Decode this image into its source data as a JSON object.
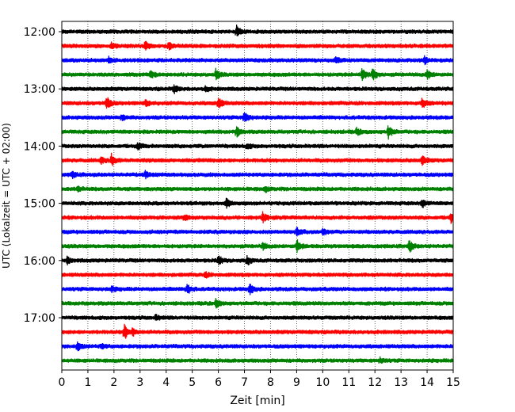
{
  "chart_data": {
    "type": "line",
    "xlabel": "Zeit  [min]",
    "ylabel": "UTC (Lokalzeit = UTC + 02:00)",
    "xlim": [
      0,
      15
    ],
    "x_ticks": [
      "0",
      "1",
      "2",
      "3",
      "4",
      "5",
      "6",
      "7",
      "8",
      "9",
      "10",
      "11",
      "12",
      "13",
      "14",
      "15"
    ],
    "y_ticks": [
      "12:00",
      "13:00",
      "14:00",
      "15:00",
      "16:00",
      "17:00"
    ],
    "grid": "vertical-dotted",
    "colors": [
      "#000000",
      "#ff0000",
      "#0000ff",
      "#008000"
    ],
    "traces": [
      {
        "start": "12:00",
        "color": "#000000",
        "events": [
          [
            6.7,
            7
          ]
        ]
      },
      {
        "start": "12:15",
        "color": "#ff0000",
        "events": [
          [
            3.2,
            5
          ],
          [
            4.1,
            4
          ],
          [
            1.9,
            3
          ]
        ]
      },
      {
        "start": "12:30",
        "color": "#0000ff",
        "events": [
          [
            1.8,
            4
          ],
          [
            10.5,
            3
          ],
          [
            13.9,
            4
          ]
        ]
      },
      {
        "start": "12:45",
        "color": "#008000",
        "events": [
          [
            5.9,
            6
          ],
          [
            11.5,
            9
          ],
          [
            11.9,
            8
          ],
          [
            14.0,
            6
          ],
          [
            3.4,
            4
          ]
        ]
      },
      {
        "start": "13:00",
        "color": "#000000",
        "events": [
          [
            4.3,
            5
          ],
          [
            5.5,
            3
          ]
        ]
      },
      {
        "start": "13:15",
        "color": "#ff0000",
        "events": [
          [
            1.7,
            9
          ],
          [
            6.0,
            7
          ],
          [
            3.2,
            4
          ],
          [
            13.8,
            7
          ]
        ]
      },
      {
        "start": "13:30",
        "color": "#0000ff",
        "events": [
          [
            7.0,
            7
          ],
          [
            2.3,
            3
          ]
        ]
      },
      {
        "start": "13:45",
        "color": "#008000",
        "events": [
          [
            6.7,
            6
          ],
          [
            12.5,
            9
          ],
          [
            11.3,
            4
          ]
        ]
      },
      {
        "start": "14:00",
        "color": "#000000",
        "events": [
          [
            2.9,
            4
          ],
          [
            7.1,
            3
          ]
        ]
      },
      {
        "start": "14:15",
        "color": "#ff0000",
        "events": [
          [
            1.9,
            7
          ],
          [
            1.5,
            4
          ],
          [
            13.8,
            6
          ]
        ]
      },
      {
        "start": "14:30",
        "color": "#0000ff",
        "events": [
          [
            0.4,
            4
          ],
          [
            3.2,
            4
          ]
        ]
      },
      {
        "start": "14:45",
        "color": "#008000",
        "events": [
          [
            0.6,
            3
          ],
          [
            7.8,
            3
          ]
        ]
      },
      {
        "start": "15:00",
        "color": "#000000",
        "events": [
          [
            6.3,
            6
          ],
          [
            13.8,
            5
          ]
        ]
      },
      {
        "start": "15:15",
        "color": "#ff0000",
        "events": [
          [
            7.7,
            6
          ],
          [
            14.9,
            6
          ],
          [
            4.7,
            3
          ]
        ]
      },
      {
        "start": "15:30",
        "color": "#0000ff",
        "events": [
          [
            9.0,
            6
          ],
          [
            10.0,
            4
          ]
        ]
      },
      {
        "start": "15:45",
        "color": "#008000",
        "events": [
          [
            9.0,
            8
          ],
          [
            13.3,
            8
          ],
          [
            7.7,
            4
          ]
        ]
      },
      {
        "start": "16:00",
        "color": "#000000",
        "events": [
          [
            6.0,
            6
          ],
          [
            7.1,
            5
          ],
          [
            0.2,
            4
          ]
        ]
      },
      {
        "start": "16:15",
        "color": "#ff0000",
        "events": [
          [
            5.5,
            3
          ]
        ]
      },
      {
        "start": "16:30",
        "color": "#0000ff",
        "events": [
          [
            4.8,
            6
          ],
          [
            7.2,
            7
          ],
          [
            1.9,
            3
          ]
        ]
      },
      {
        "start": "16:45",
        "color": "#008000",
        "events": [
          [
            5.9,
            5
          ]
        ]
      },
      {
        "start": "17:00",
        "color": "#000000",
        "events": [
          [
            3.6,
            3
          ]
        ]
      },
      {
        "start": "17:15",
        "color": "#ff0000",
        "events": [
          [
            2.4,
            9
          ],
          [
            2.7,
            5
          ]
        ]
      },
      {
        "start": "17:30",
        "color": "#0000ff",
        "events": [
          [
            0.6,
            6
          ],
          [
            1.5,
            3
          ]
        ]
      },
      {
        "start": "17:45",
        "color": "#008000",
        "events": [
          [
            12.2,
            3
          ]
        ]
      }
    ]
  }
}
